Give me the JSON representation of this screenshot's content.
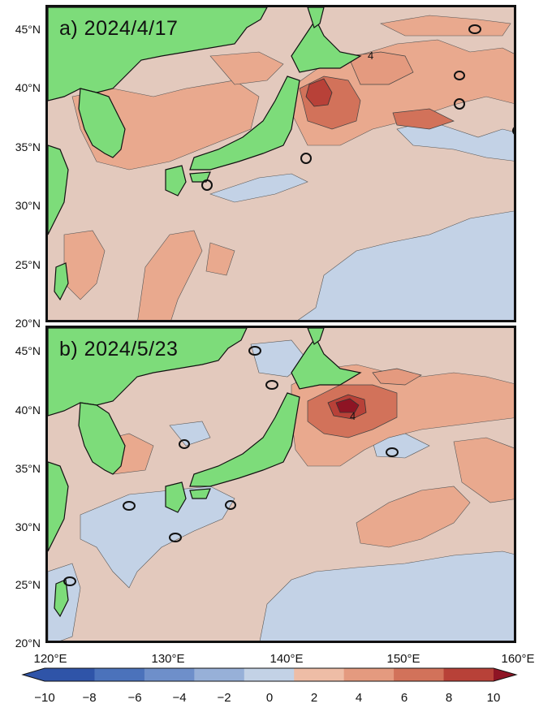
{
  "panels": [
    {
      "label": "a) 2024/4/17"
    },
    {
      "label": "b) 2024/5/23"
    }
  ],
  "contour_labels": {
    "value": "4"
  },
  "axes": {
    "lat_ticks": [
      "45°N",
      "40°N",
      "35°N",
      "30°N",
      "25°N",
      "20°N"
    ],
    "lon_ticks": [
      "120°E",
      "130°E",
      "140°E",
      "150°E",
      "160°E"
    ]
  },
  "colorbar": {
    "ticks": [
      "−10",
      "−8",
      "−6",
      "−4",
      "−2",
      "0",
      "2",
      "4",
      "6",
      "8",
      "10"
    ],
    "range": [
      -10,
      10
    ],
    "colors": [
      "#2f54a8",
      "#4b72bb",
      "#6e8fca",
      "#97b0d8",
      "#c3d2e6",
      "#e2ddda",
      "#eebda6",
      "#e49a7f",
      "#d2725a",
      "#b84138",
      "#8e1424"
    ]
  },
  "colors": {
    "land": "#7ddc7a",
    "neutral": "#e3c9bd",
    "warm": "#e9a98e",
    "cold": "#c3d2e6"
  }
}
